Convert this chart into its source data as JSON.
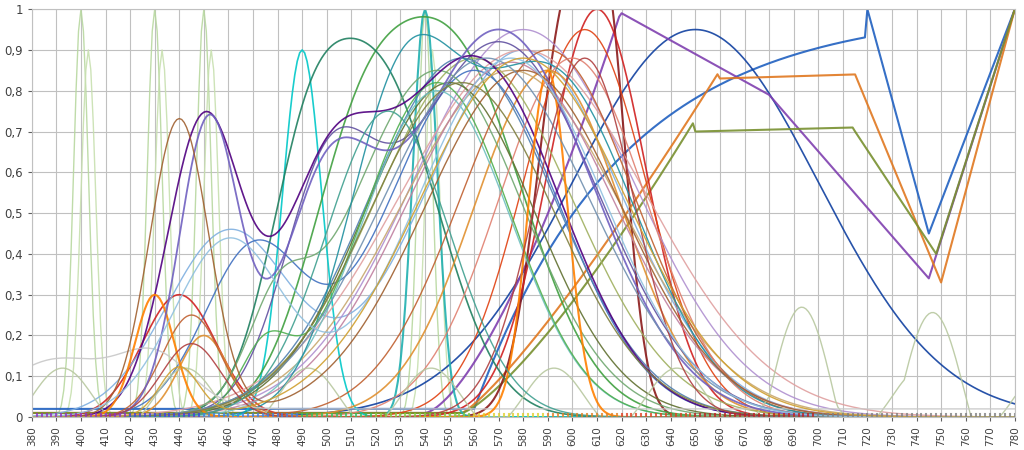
{
  "xlim": [
    380,
    780
  ],
  "ylim": [
    0,
    1
  ],
  "xticks": [
    380,
    390,
    400,
    410,
    420,
    430,
    440,
    450,
    460,
    470,
    480,
    490,
    500,
    510,
    520,
    530,
    540,
    550,
    560,
    570,
    580,
    590,
    600,
    610,
    620,
    630,
    640,
    650,
    660,
    670,
    680,
    690,
    700,
    710,
    720,
    730,
    740,
    750,
    760,
    770,
    780
  ],
  "yticks": [
    0,
    0.1,
    0.2,
    0.3,
    0.4,
    0.5,
    0.6,
    0.7,
    0.8,
    0.9,
    1
  ],
  "background_color": "#ffffff",
  "grid_color": "#c0c0c0",
  "tick_color": "#606060",
  "bottom_tick_colors": [
    "#e04040",
    "#e08040",
    "#d0c040",
    "#40c040",
    "#4040c0",
    "#c040c0"
  ]
}
